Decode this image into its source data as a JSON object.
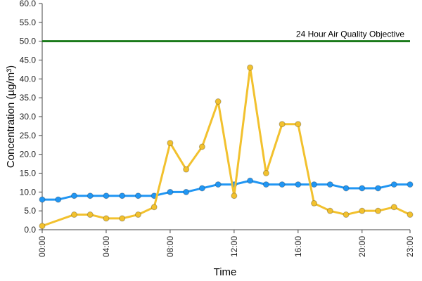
{
  "chart_data": {
    "type": "line",
    "xlabel": "Time",
    "ylabel": "Concentration (µg/m³)",
    "ylim": [
      0,
      60
    ],
    "yticks": [
      0.0,
      5.0,
      10.0,
      15.0,
      20.0,
      25.0,
      30.0,
      35.0,
      40.0,
      45.0,
      50.0,
      55.0,
      60.0
    ],
    "ytick_labels": [
      "0.0",
      "5.0",
      "10.0",
      "15.0",
      "20.0",
      "25.0",
      "30.0",
      "35.0",
      "40.0",
      "45.0",
      "50.0",
      "55.0",
      "60.0"
    ],
    "xlim": [
      0,
      23
    ],
    "xticks": [
      0,
      4,
      8,
      12,
      16,
      20,
      23
    ],
    "xtick_labels": [
      "00:00",
      "04:00",
      "08:00",
      "12:00",
      "16:00",
      "20:00",
      "23:00"
    ],
    "x": [
      0,
      1,
      2,
      3,
      4,
      5,
      6,
      7,
      8,
      9,
      10,
      11,
      12,
      13,
      14,
      15,
      16,
      17,
      18,
      19,
      20,
      21,
      22,
      23
    ],
    "grid": false,
    "reference_line": {
      "value": 50.0,
      "label": "24 Hour Air Quality Objective",
      "color": "#1a7a1a"
    },
    "series": [
      {
        "color": "#2196f3",
        "values": [
          8,
          8,
          9,
          9,
          9,
          9,
          9,
          9,
          10,
          10,
          11,
          12,
          12,
          13,
          12,
          12,
          12,
          12,
          12,
          11,
          11,
          11,
          12,
          12
        ]
      },
      {
        "color": "#f2c12e",
        "values": [
          1,
          null,
          4,
          4,
          3,
          3,
          4,
          6,
          23,
          16,
          22,
          34,
          9,
          43,
          15,
          28,
          28,
          7,
          5,
          4,
          5,
          5,
          6,
          4
        ]
      }
    ]
  }
}
